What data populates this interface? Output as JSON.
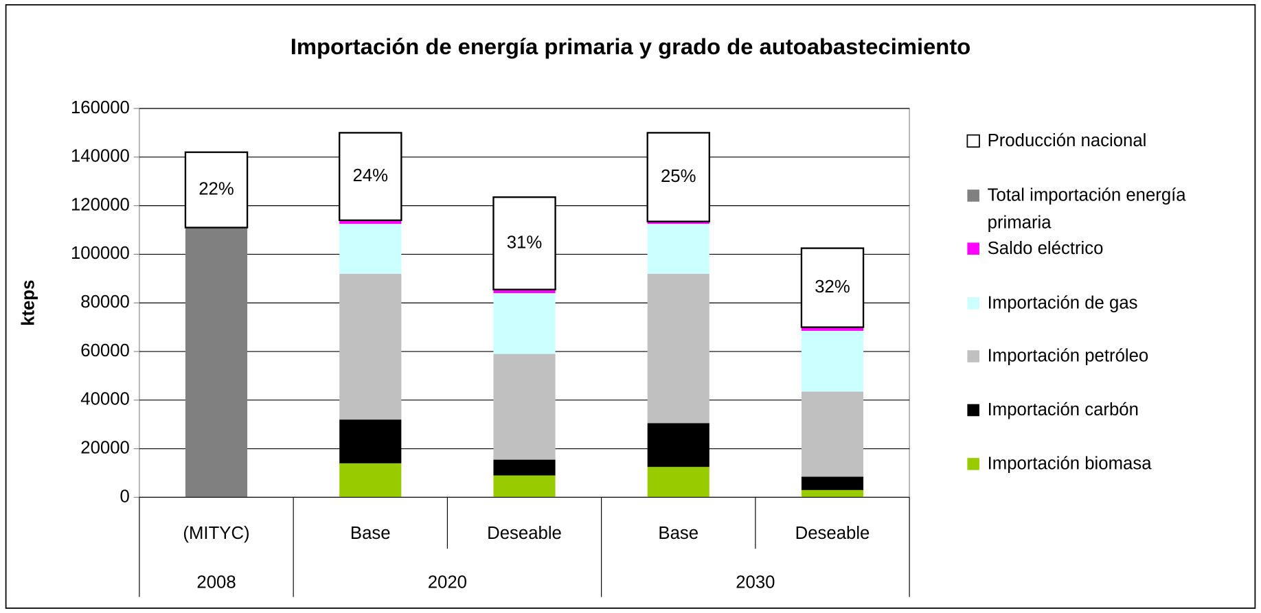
{
  "chart_data": {
    "type": "stacked_bar",
    "title": "Importación de energía primaria y grado de autoabastecimiento",
    "y_label": "kteps",
    "categories": [
      "(MITYC)",
      "Base",
      "Deseable",
      "Base",
      "Deseable"
    ],
    "category_groups": [
      {
        "label": "2008",
        "count": 1
      },
      {
        "label": "2020",
        "count": 2
      },
      {
        "label": "2030",
        "count": 2
      }
    ],
    "series": [
      {
        "name": "Producción nacional",
        "color": "#ffffff",
        "values": [
          31000,
          36000,
          38000,
          36500,
          32500
        ]
      },
      {
        "name": "Total importación energía primaria",
        "color": "#808080",
        "values": [
          111000,
          null,
          null,
          null,
          null
        ]
      },
      {
        "name": "Saldo eléctrico",
        "color": "#ff00ff",
        "values": [
          null,
          1500,
          1500,
          1000,
          1500
        ]
      },
      {
        "name": "Importación de gas",
        "color": "#ccffff",
        "values": [
          null,
          20500,
          25000,
          20500,
          25000
        ]
      },
      {
        "name": "Importación petróleo",
        "color": "#c0c0c0",
        "values": [
          null,
          60000,
          43500,
          61500,
          35000
        ]
      },
      {
        "name": "Importación carbón",
        "color": "#000000",
        "values": [
          null,
          18000,
          6500,
          18000,
          5500
        ]
      },
      {
        "name": "Importación biomasa",
        "color": "#99cc00",
        "values": [
          null,
          14000,
          9000,
          12500,
          3000
        ]
      }
    ],
    "annotations": [
      "22%",
      "24%",
      "31%",
      "25%",
      "32%"
    ],
    "ylim": [
      0,
      160000
    ],
    "yticks": [
      0,
      20000,
      40000,
      60000,
      80000,
      100000,
      120000,
      140000,
      160000
    ],
    "grid": true,
    "legend": "right"
  }
}
